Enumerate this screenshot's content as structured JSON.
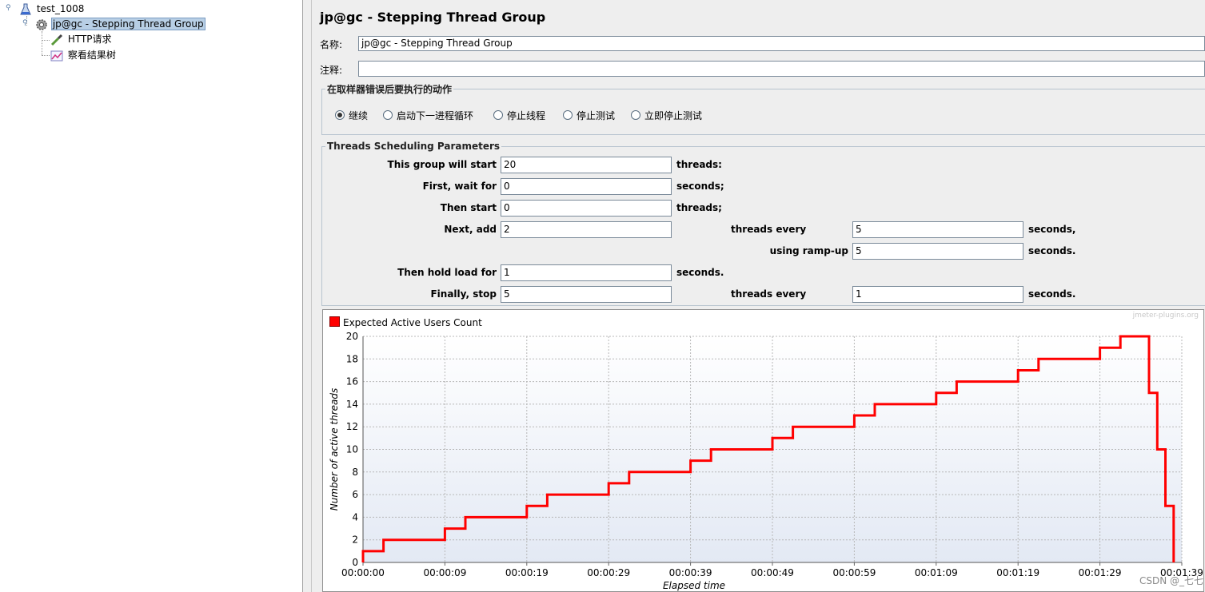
{
  "tree": {
    "nodes": [
      {
        "label": "test_1008",
        "icon": "flask-icon"
      },
      {
        "label": "jp@gc - Stepping Thread Group",
        "icon": "gear-icon"
      },
      {
        "label": "HTTP请求",
        "icon": "pipette-icon"
      },
      {
        "label": "察看结果树",
        "icon": "chart-icon"
      }
    ]
  },
  "panel": {
    "title": "jp@gc - Stepping Thread Group",
    "name_label": "名称:",
    "name_value": "jp@gc - Stepping Thread Group",
    "comment_label": "注释:",
    "comment_value": ""
  },
  "sampler_error": {
    "legend": "在取样器错误后要执行的动作",
    "options": [
      "继续",
      "启动下一进程循环",
      "停止线程",
      "停止测试",
      "立即停止测试"
    ],
    "selected": "继续"
  },
  "scheduling": {
    "legend": "Threads Scheduling Parameters",
    "start_label": "This group will start",
    "start_value": "20",
    "start_unit": "threads:",
    "wait_label": "First, wait for",
    "wait_value": "0",
    "wait_unit": "seconds;",
    "then_start_label": "Then start",
    "then_start_value": "0",
    "then_start_unit": "threads;",
    "add_label": "Next, add",
    "add_value": "2",
    "add_every_label": "threads every",
    "add_every_value": "5",
    "add_every_unit": "seconds,",
    "rampup_label": "using ramp-up",
    "rampup_value": "5",
    "rampup_unit": "seconds.",
    "hold_label": "Then hold load for",
    "hold_value": "1",
    "hold_unit": "seconds.",
    "stop_label": "Finally, stop",
    "stop_value": "5",
    "stop_every_label": "threads every",
    "stop_every_value": "1",
    "stop_every_unit": "seconds."
  },
  "chart_data": {
    "type": "line",
    "series": [
      {
        "name": "Expected Active Users Count",
        "color": "#ff0000",
        "points": [
          [
            0,
            0
          ],
          [
            0,
            1
          ],
          [
            2.5,
            1
          ],
          [
            2.5,
            2
          ],
          [
            10,
            2
          ],
          [
            10,
            3
          ],
          [
            12.5,
            3
          ],
          [
            12.5,
            4
          ],
          [
            20,
            4
          ],
          [
            20,
            5
          ],
          [
            22.5,
            5
          ],
          [
            22.5,
            6
          ],
          [
            30,
            6
          ],
          [
            30,
            7
          ],
          [
            32.5,
            7
          ],
          [
            32.5,
            8
          ],
          [
            40,
            8
          ],
          [
            40,
            9
          ],
          [
            42.5,
            9
          ],
          [
            42.5,
            10
          ],
          [
            50,
            10
          ],
          [
            50,
            11
          ],
          [
            52.5,
            11
          ],
          [
            52.5,
            12
          ],
          [
            60,
            12
          ],
          [
            60,
            13
          ],
          [
            62.5,
            13
          ],
          [
            62.5,
            14
          ],
          [
            70,
            14
          ],
          [
            70,
            15
          ],
          [
            72.5,
            15
          ],
          [
            72.5,
            16
          ],
          [
            80,
            16
          ],
          [
            80,
            17
          ],
          [
            82.5,
            17
          ],
          [
            82.5,
            18
          ],
          [
            90,
            18
          ],
          [
            90,
            19
          ],
          [
            92.5,
            19
          ],
          [
            92.5,
            20
          ],
          [
            96,
            20
          ],
          [
            96,
            15
          ],
          [
            97,
            15
          ],
          [
            97,
            10
          ],
          [
            98,
            10
          ],
          [
            98,
            5
          ],
          [
            99,
            5
          ],
          [
            99,
            0
          ]
        ]
      }
    ],
    "xlabel": "Elapsed time",
    "ylabel": "Number of active threads",
    "xticks": [
      "00:00:00",
      "00:00:09",
      "00:00:19",
      "00:00:29",
      "00:00:39",
      "00:00:49",
      "00:00:59",
      "00:01:09",
      "00:01:19",
      "00:01:29",
      "00:01:39"
    ],
    "yticks": [
      0,
      2,
      4,
      6,
      8,
      10,
      12,
      14,
      16,
      18,
      20
    ],
    "xlim": [
      0,
      100
    ],
    "ylim": [
      0,
      20
    ],
    "grid": true,
    "legend_position": "top-left",
    "watermark": "jmeter-plugins.org"
  },
  "watermark_text": "CSDN @_七七"
}
